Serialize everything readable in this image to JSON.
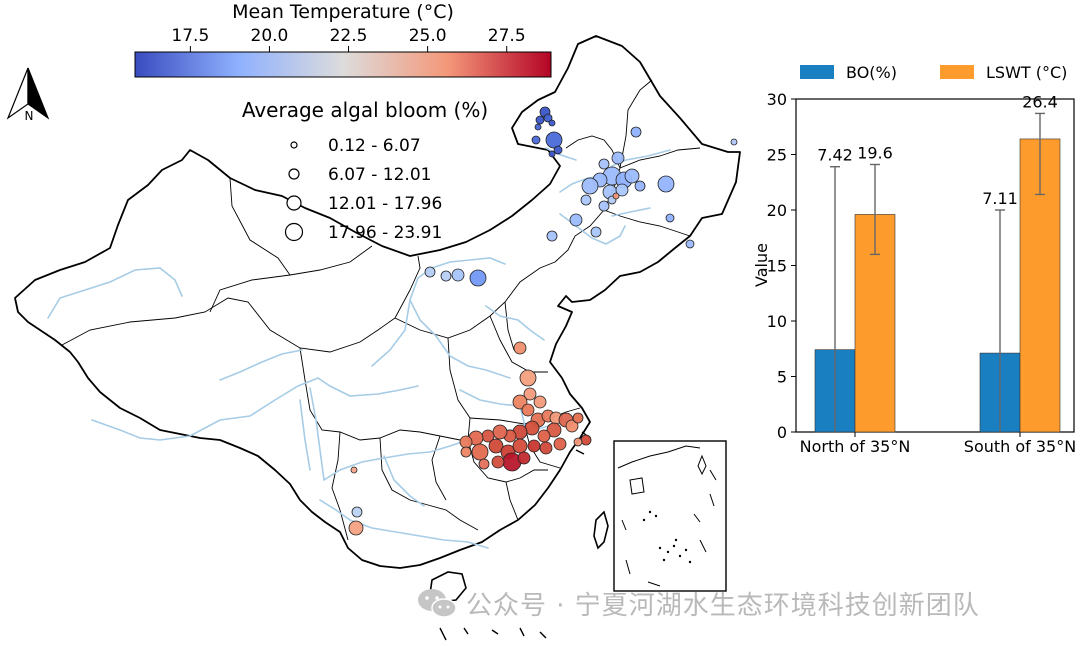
{
  "colorbar": {
    "title": "Mean Temperature (°C)",
    "ticks": [
      "17.5",
      "20.0",
      "22.5",
      "25.0",
      "27.5"
    ],
    "colors": [
      "#3a4cc0",
      "#8fb1fe",
      "#dddcdc",
      "#f4987a",
      "#b40426"
    ]
  },
  "size_legend": {
    "title": "Average algal bloom (%)",
    "items": [
      "0.12 - 6.07",
      "6.07 - 12.01",
      "12.01 - 17.96",
      "17.96 - 23.91"
    ]
  },
  "north_arrow": {
    "label": "N"
  },
  "map": {
    "border_color": "#000000",
    "river_color": "#a6cce6"
  },
  "chart_data": {
    "type": "bar",
    "categories": [
      "North of 35°N",
      "South of 35°N"
    ],
    "series": [
      {
        "name": "BO(%)",
        "values": [
          7.42,
          7.11
        ],
        "color": "#1a7fc1",
        "error_low": [
          0,
          0
        ],
        "error_high": [
          23.9,
          20.0
        ]
      },
      {
        "name": "LSWT (°C)",
        "values": [
          19.6,
          26.4
        ],
        "color": "#fd9b2c",
        "error_low": [
          16.0,
          21.4
        ],
        "error_high": [
          24.1,
          28.7
        ]
      }
    ],
    "data_labels": [
      [
        "7.42",
        "19.6"
      ],
      [
        "7.11",
        "26.4"
      ]
    ],
    "ylabel": "Value",
    "yticks": [
      "0",
      "5",
      "10",
      "15",
      "20",
      "25",
      "30"
    ],
    "ylim": [
      0,
      30
    ],
    "legend_position": "top"
  },
  "watermark": {
    "text": "公众号 · 宁夏河湖水生态环境科技创新团队",
    "icon": "wechat-icon"
  }
}
